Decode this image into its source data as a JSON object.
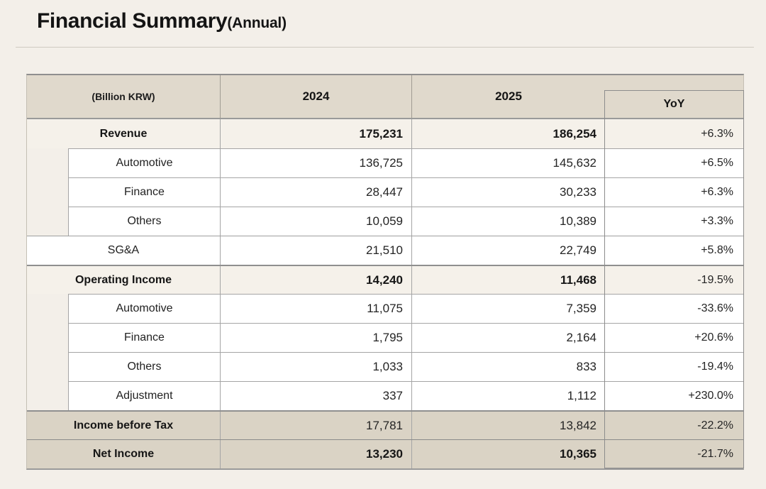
{
  "page": {
    "title": "Financial Summary",
    "title_suffix": "(Annual)"
  },
  "table": {
    "unit_label": "(Billion KRW)",
    "col_2024": "2024",
    "col_2025": "2025",
    "col_yoy": "YoY",
    "rows": [
      {
        "label": "Revenue",
        "v2024": "175,231",
        "v2025": "186,254",
        "yoy": "+6.3%"
      },
      {
        "label": "Automotive",
        "v2024": "136,725",
        "v2025": "145,632",
        "yoy": "+6.5%"
      },
      {
        "label": "Finance",
        "v2024": "28,447",
        "v2025": "30,233",
        "yoy": "+6.3%"
      },
      {
        "label": "Others",
        "v2024": "10,059",
        "v2025": "10,389",
        "yoy": "+3.3%"
      },
      {
        "label": "SG&A",
        "v2024": "21,510",
        "v2025": "22,749",
        "yoy": "+5.8%"
      },
      {
        "label": "Operating Income",
        "v2024": "14,240",
        "v2025": "11,468",
        "yoy": "-19.5%"
      },
      {
        "label": "Automotive",
        "v2024": "11,075",
        "v2025": "7,359",
        "yoy": "-33.6%"
      },
      {
        "label": "Finance",
        "v2024": "1,795",
        "v2025": "2,164",
        "yoy": "+20.6%"
      },
      {
        "label": "Others",
        "v2024": "1,033",
        "v2025": "833",
        "yoy": "-19.4%"
      },
      {
        "label": "Adjustment",
        "v2024": "337",
        "v2025": "1,112",
        "yoy": "+230.0%"
      },
      {
        "label": "Income before Tax",
        "v2024": "17,781",
        "v2025": "13,842",
        "yoy": "-22.2%"
      },
      {
        "label": "Net Income",
        "v2024": "13,230",
        "v2025": "10,365",
        "yoy": "-21.7%"
      }
    ]
  },
  "colors": {
    "page_bg": "#f3efe9",
    "header_fill": "#e0d9cc",
    "summary_row_fill": "#dad3c5",
    "subtotal_row_fill": "#f5f1ea",
    "data_row_fill": "#ffffff",
    "text": "#1a1a1a",
    "grid_line": "#9e9e9e"
  },
  "chart_data": {
    "type": "table",
    "title": "Financial Summary(Annual)",
    "unit": "Billion KRW",
    "columns": [
      "(Billion KRW)",
      "2024",
      "2025",
      "YoY"
    ],
    "rows": [
      [
        "Revenue",
        175231,
        186254,
        "+6.3%"
      ],
      [
        "Automotive",
        136725,
        145632,
        "+6.5%"
      ],
      [
        "Finance",
        28447,
        30233,
        "+6.3%"
      ],
      [
        "Others",
        10059,
        10389,
        "+3.3%"
      ],
      [
        "SG&A",
        21510,
        22749,
        "+5.8%"
      ],
      [
        "Operating Income",
        14240,
        11468,
        "-19.5%"
      ],
      [
        "Automotive",
        11075,
        7359,
        "-33.6%"
      ],
      [
        "Finance",
        1795,
        2164,
        "+20.6%"
      ],
      [
        "Others",
        1033,
        833,
        "-19.4%"
      ],
      [
        "Adjustment",
        337,
        1112,
        "+230.0%"
      ],
      [
        "Income before Tax",
        17781,
        13842,
        "-22.2%"
      ],
      [
        "Net Income",
        13230,
        10365,
        "-21.7%"
      ]
    ]
  }
}
